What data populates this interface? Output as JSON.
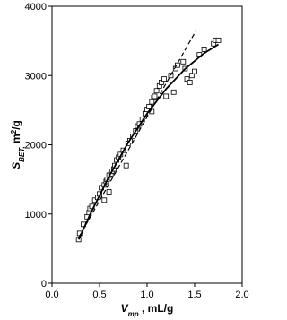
{
  "chart_data": {
    "type": "scatter",
    "xlabel": [
      {
        "text": "V",
        "style": "italic"
      },
      {
        "text": "mp",
        "style": "sub"
      },
      {
        "text": " , mL/g",
        "style": "normal"
      }
    ],
    "ylabel": [
      {
        "text": "S",
        "style": "italic"
      },
      {
        "text": "BET,",
        "style": "sub"
      },
      {
        "text": " m",
        "style": "normal"
      },
      {
        "text": "2",
        "style": "sup"
      },
      {
        "text": "/g",
        "style": "normal"
      }
    ],
    "xlim": [
      0,
      2.0
    ],
    "xticks": [
      {
        "value": 0,
        "label": "0.0"
      },
      {
        "value": 0.5,
        "label": "0.5"
      },
      {
        "value": 1.0,
        "label": "1.0"
      },
      {
        "value": 1.5,
        "label": "1.5"
      },
      {
        "value": 2.0,
        "label": "2.0"
      }
    ],
    "ylim": [
      0,
      4000
    ],
    "yticks": [
      0,
      1000,
      2000,
      3000,
      4000
    ],
    "series": [
      {
        "kind": "markers",
        "marker": "square",
        "color": "#000000",
        "x": [
          0.28,
          0.29,
          0.33,
          0.37,
          0.39,
          0.4,
          0.42,
          0.45,
          0.48,
          0.5,
          0.52,
          0.55,
          0.55,
          0.57,
          0.58,
          0.6,
          0.6,
          0.62,
          0.63,
          0.65,
          0.66,
          0.68,
          0.7,
          0.72,
          0.75,
          0.78,
          0.8,
          0.82,
          0.85,
          0.88,
          0.9,
          0.92,
          0.95,
          0.98,
          1.0,
          1.02,
          1.05,
          1.05,
          1.07,
          1.08,
          1.1,
          1.13,
          1.15,
          1.18,
          1.2,
          1.25,
          1.28,
          1.3,
          1.32,
          1.38,
          1.4,
          1.42,
          1.45,
          1.47,
          1.5,
          1.55,
          1.6,
          1.7,
          1.72,
          1.75
        ],
        "values": [
          630,
          720,
          850,
          960,
          1020,
          1080,
          1110,
          1200,
          1240,
          1290,
          1380,
          1200,
          1420,
          1470,
          1500,
          1320,
          1560,
          1580,
          1620,
          1650,
          1700,
          1780,
          1820,
          1860,
          1920,
          1700,
          2020,
          2060,
          2120,
          2200,
          2270,
          2300,
          2370,
          2450,
          2510,
          2550,
          2620,
          2480,
          2680,
          2700,
          2780,
          2850,
          2900,
          2950,
          2700,
          3000,
          2760,
          3100,
          3150,
          3200,
          3100,
          2950,
          2900,
          3000,
          3060,
          3300,
          3380,
          3460,
          3510,
          3510
        ]
      },
      {
        "kind": "line",
        "dash": false,
        "color": "#000000",
        "x": [
          0.28,
          0.4,
          0.6,
          0.8,
          1.0,
          1.2,
          1.4,
          1.6,
          1.75
        ],
        "values": [
          630,
          992,
          1543,
          2029,
          2450,
          2806,
          3097,
          3323,
          3450
        ]
      },
      {
        "kind": "line",
        "dash": true,
        "color": "#000000",
        "x": [
          0.28,
          1.51
        ],
        "values": [
          660,
          3637
        ]
      }
    ]
  }
}
